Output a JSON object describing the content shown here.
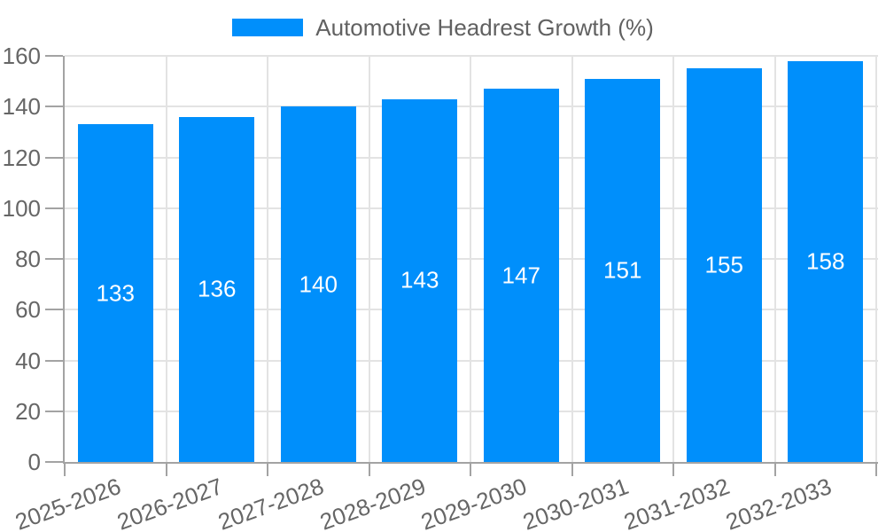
{
  "legend": {
    "label": "Automotive Headrest Growth (%)"
  },
  "chart_data": {
    "type": "bar",
    "title": "Automotive Headrest Growth (%)",
    "categories": [
      "2025-2026",
      "2026-2027",
      "2027-2028",
      "2028-2029",
      "2029-2030",
      "2030-2031",
      "2031-2032",
      "2032-2033"
    ],
    "values": [
      133,
      136,
      140,
      143,
      147,
      151,
      155,
      158
    ],
    "yticks": [
      0,
      20,
      40,
      60,
      80,
      100,
      120,
      140,
      160
    ],
    "ylim": [
      0,
      160
    ],
    "xlabel": "",
    "ylabel": "",
    "grid": true,
    "legend_position": "top",
    "x_label_rotation_deg": -20,
    "bar_value_label_position": "middle",
    "colors": {
      "bar": "#008FFB",
      "bar_label": "#FFFFFF",
      "axis": "#A3A3A3",
      "grid": "#E3E3E3",
      "tick_text": "#666666",
      "legend_text": "#616161"
    }
  }
}
